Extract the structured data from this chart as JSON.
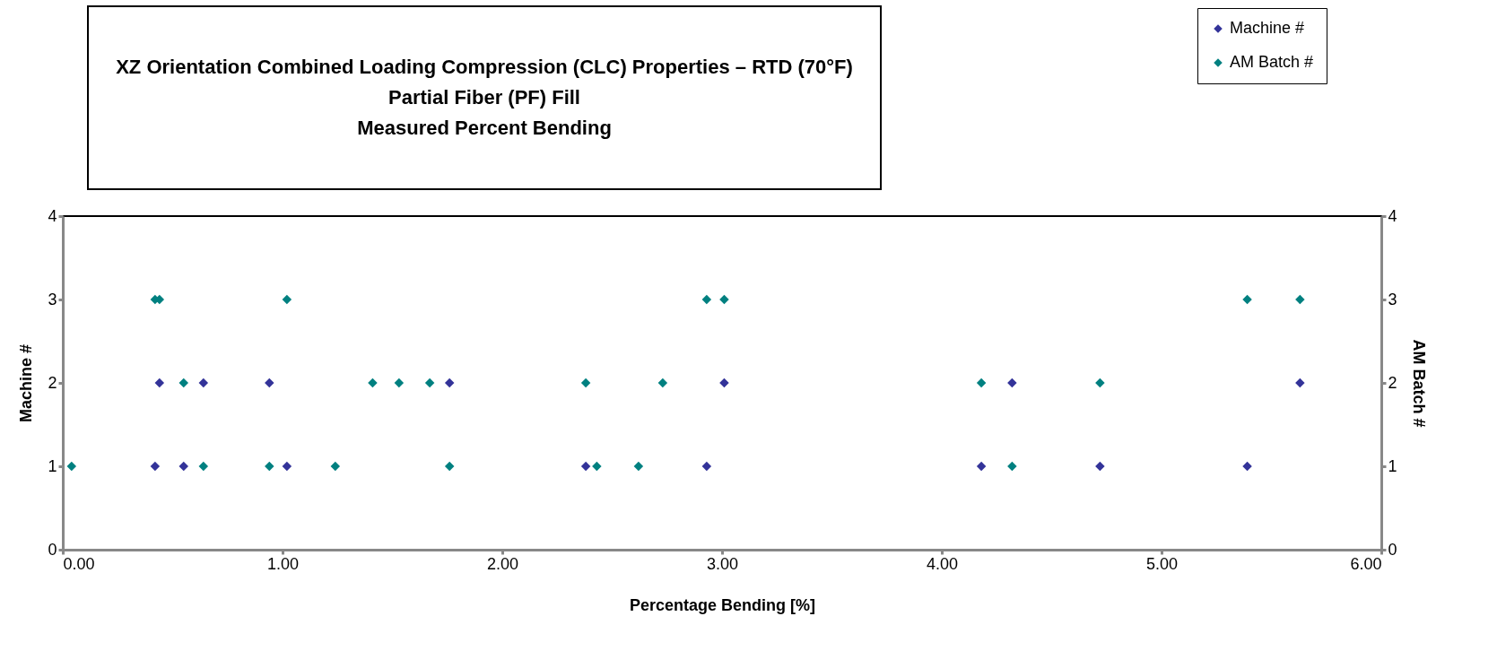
{
  "chart_data": {
    "type": "scatter",
    "title": "XZ Orientation Combined Loading Compression (CLC) Properties – RTD (70°F)\nPartial Fiber (PF) Fill\nMeasured Percent Bending",
    "xlabel": "Percentage Bending [%]",
    "ylabel": "Machine #",
    "y2label": "AM Batch #",
    "series": [
      {
        "name": "Machine #",
        "color": "#333399",
        "x": [
          0.42,
          0.55,
          1.02,
          2.38,
          2.93,
          4.18,
          4.72,
          5.39,
          0.44,
          0.64,
          0.94,
          1.76,
          3.01,
          4.32,
          5.63
        ],
        "values": [
          1,
          1,
          1,
          1,
          1,
          1,
          1,
          1,
          2,
          2,
          2,
          2,
          2,
          2,
          2
        ]
      },
      {
        "name": "AM Batch #",
        "color": "#008080",
        "axis": "y2",
        "x": [
          0.04,
          0.64,
          0.94,
          1.24,
          1.76,
          2.43,
          2.62,
          4.32,
          0.55,
          1.41,
          1.53,
          1.67,
          2.38,
          2.73,
          4.18,
          4.72,
          0.42,
          0.44,
          1.02,
          2.93,
          3.01,
          5.39,
          5.63
        ],
        "values": [
          1,
          1,
          1,
          1,
          1,
          1,
          1,
          1,
          2,
          2,
          2,
          2,
          2,
          2,
          2,
          2,
          3,
          3,
          3,
          3,
          3,
          3,
          3
        ]
      }
    ],
    "xlim": [
      0,
      6
    ],
    "xticks": [
      {
        "value": 0,
        "label": "0.00"
      },
      {
        "value": 1,
        "label": "1.00"
      },
      {
        "value": 2,
        "label": "2.00"
      },
      {
        "value": 3,
        "label": "3.00"
      },
      {
        "value": 4,
        "label": "4.00"
      },
      {
        "value": 5,
        "label": "5.00"
      },
      {
        "value": 6,
        "label": "6.00"
      }
    ],
    "ylim": [
      0,
      4
    ],
    "yticks": [
      0,
      1,
      2,
      3,
      4
    ],
    "y2lim": [
      0,
      4
    ],
    "y2ticks": [
      0,
      1,
      2,
      3,
      4
    ],
    "marker": "diamond",
    "legend": "top right",
    "grid": false
  }
}
